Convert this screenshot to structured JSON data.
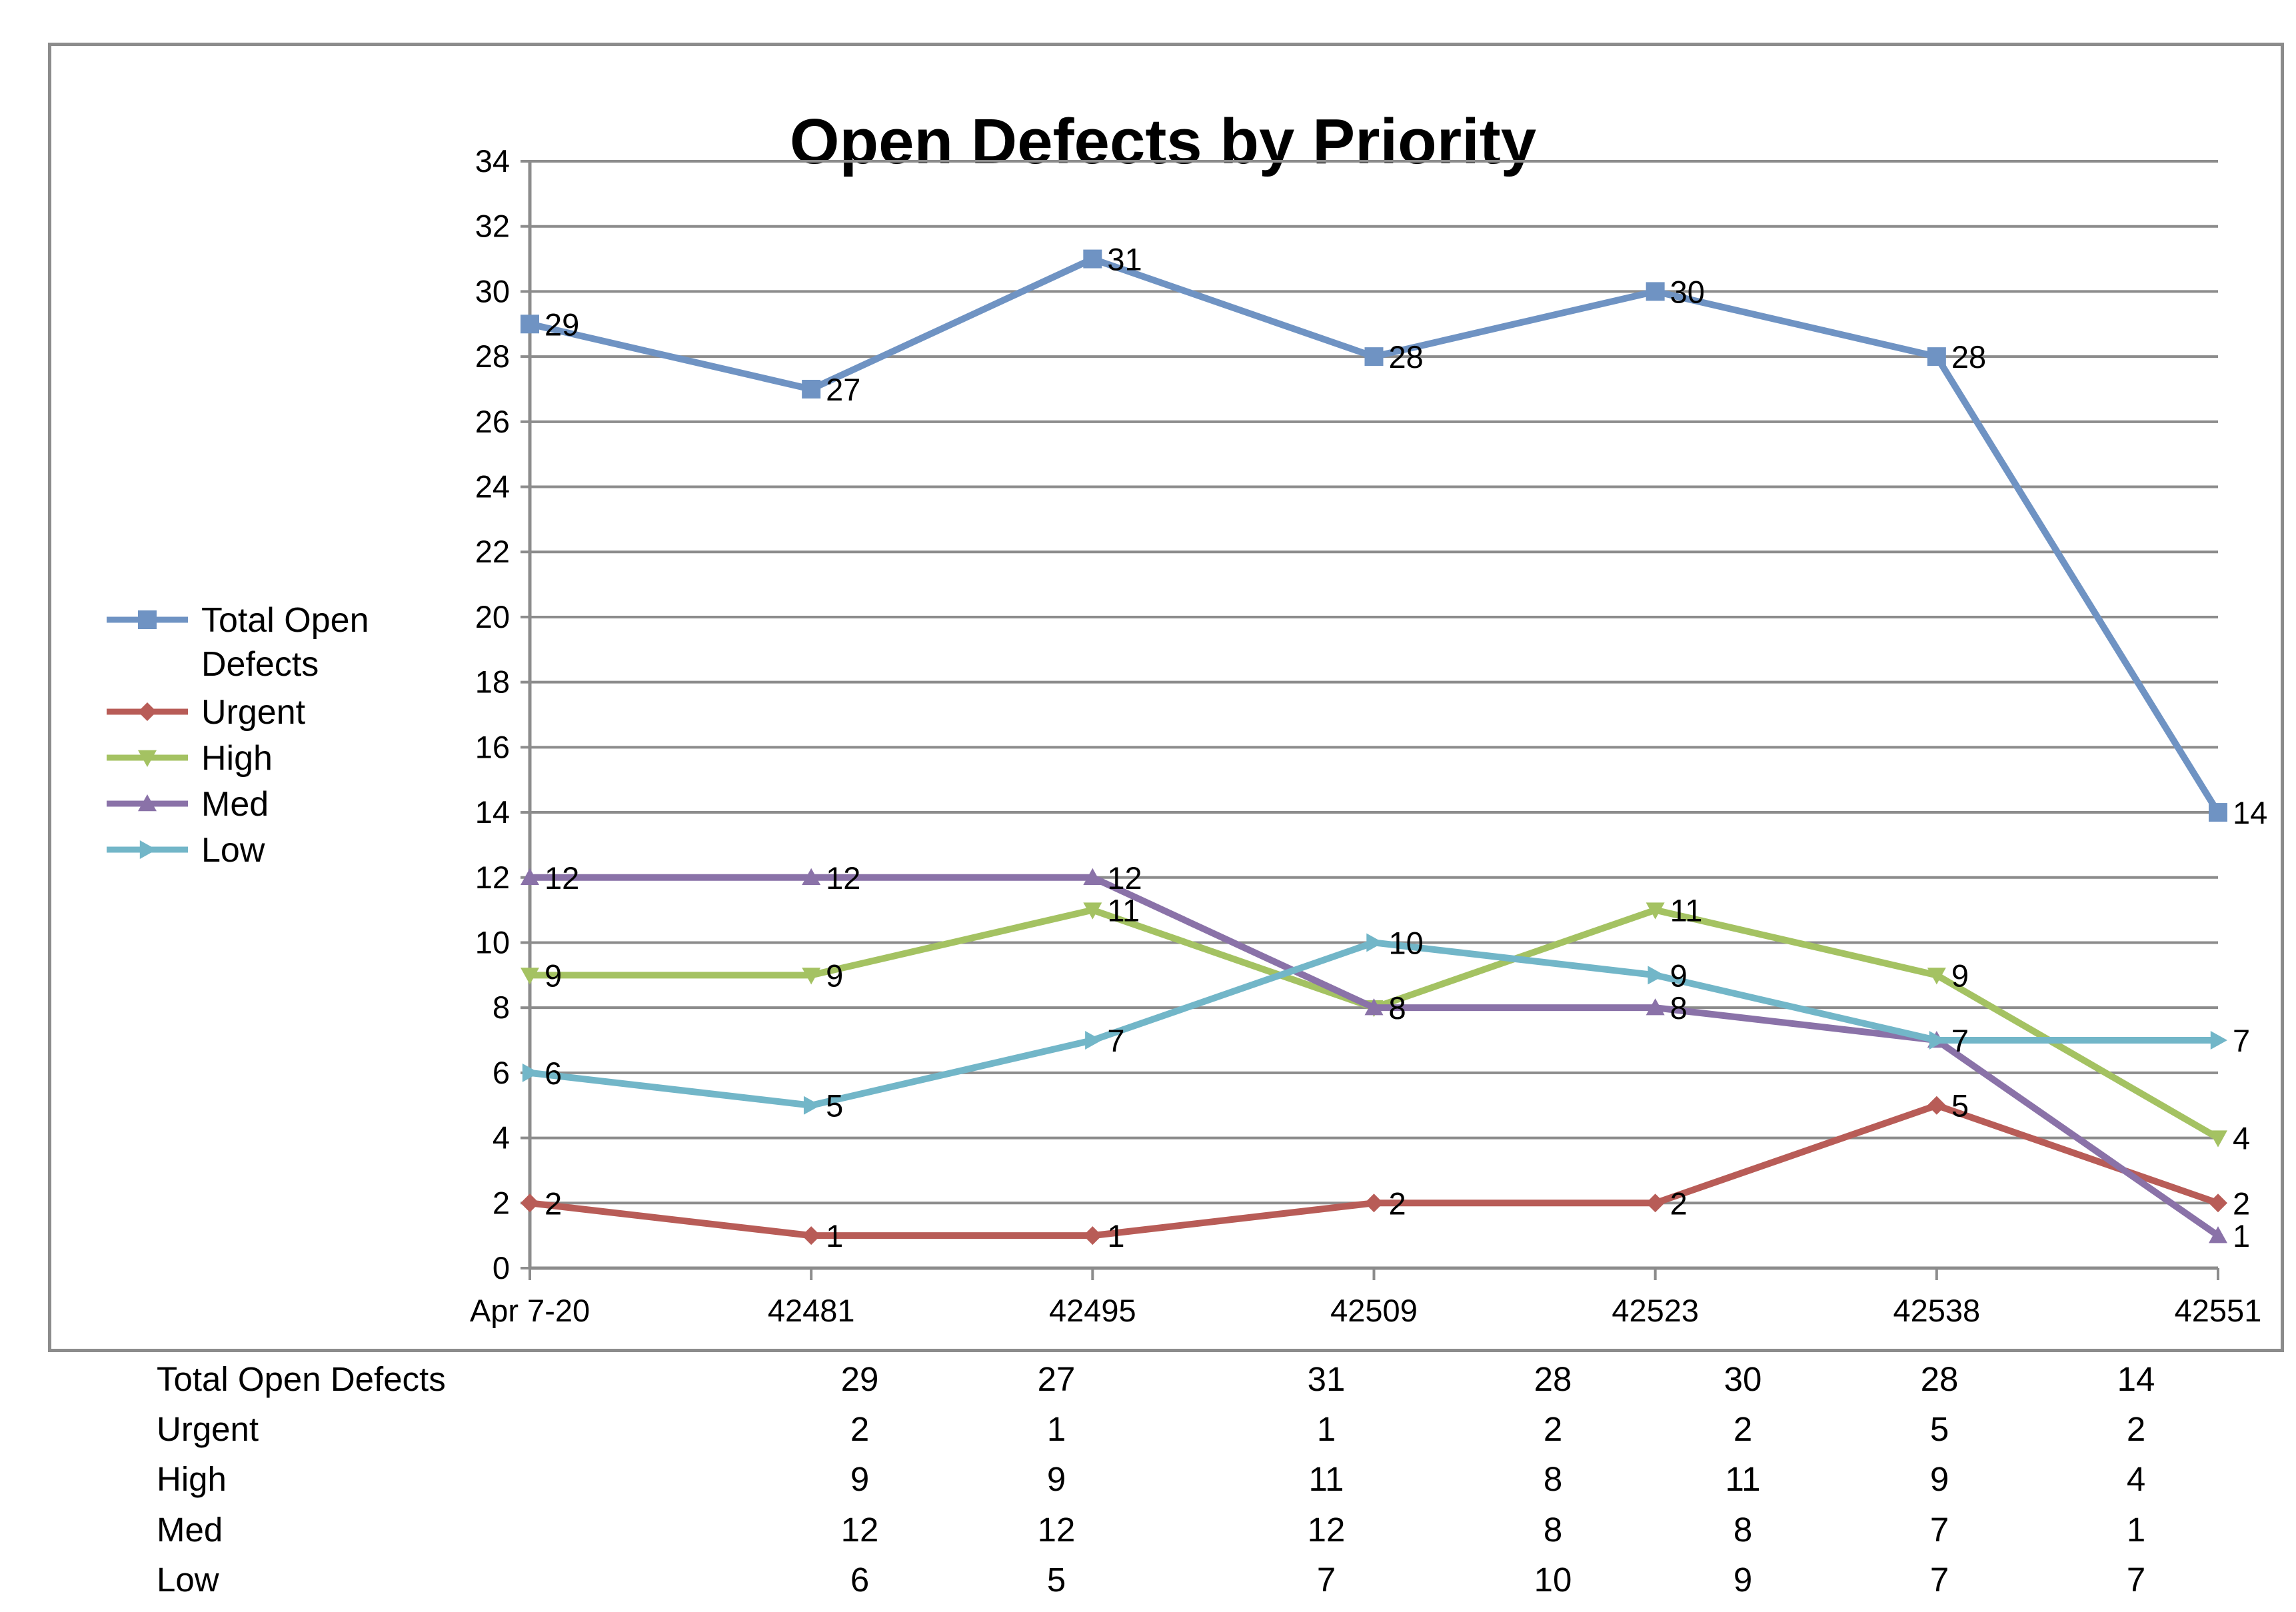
{
  "chart_data": {
    "type": "line",
    "title": "Open Defects by Priority",
    "categories": [
      "Apr 7-20",
      "42481",
      "42495",
      "42509",
      "42523",
      "42538",
      "42551"
    ],
    "ylim": [
      0,
      34
    ],
    "yticks": [
      0,
      2,
      4,
      6,
      8,
      10,
      12,
      14,
      16,
      18,
      20,
      22,
      24,
      26,
      28,
      30,
      32,
      34
    ],
    "grid": true,
    "legend_position": "left",
    "series": [
      {
        "name": "Total Open Defects",
        "legend_lines": [
          "Total Open",
          "Defects"
        ],
        "color": "#6f93c3",
        "marker": "square",
        "values": [
          29,
          27,
          31,
          28,
          30,
          28,
          14
        ]
      },
      {
        "name": "Urgent",
        "legend_lines": [
          "Urgent"
        ],
        "color": "#b85c57",
        "marker": "diamond",
        "values": [
          2,
          1,
          1,
          2,
          2,
          5,
          2
        ]
      },
      {
        "name": "High",
        "legend_lines": [
          "High"
        ],
        "color": "#a4c262",
        "marker": "triangle-down",
        "values": [
          9,
          9,
          11,
          8,
          11,
          9,
          4
        ]
      },
      {
        "name": "Med",
        "legend_lines": [
          "Med"
        ],
        "color": "#8a72a8",
        "marker": "triangle-up",
        "values": [
          12,
          12,
          12,
          8,
          8,
          7,
          1
        ]
      },
      {
        "name": "Low",
        "legend_lines": [
          "Low"
        ],
        "color": "#72b6c8",
        "marker": "triangle-right",
        "values": [
          6,
          5,
          7,
          10,
          9,
          7,
          7
        ]
      }
    ]
  },
  "data_table": {
    "rows": [
      {
        "label": "Total Open Defects",
        "values": [
          "29",
          "27",
          "31",
          "28",
          "30",
          "28",
          "14"
        ]
      },
      {
        "label": "Urgent",
        "values": [
          "2",
          "1",
          "1",
          "2",
          "2",
          "5",
          "2"
        ]
      },
      {
        "label": "High",
        "values": [
          "9",
          "9",
          "11",
          "8",
          "11",
          "9",
          "4"
        ]
      },
      {
        "label": "Med",
        "values": [
          "12",
          "12",
          "12",
          "8",
          "8",
          "7",
          "1"
        ]
      },
      {
        "label": "Low",
        "values": [
          "6",
          "5",
          "7",
          "10",
          "9",
          "7",
          "7"
        ]
      }
    ]
  }
}
